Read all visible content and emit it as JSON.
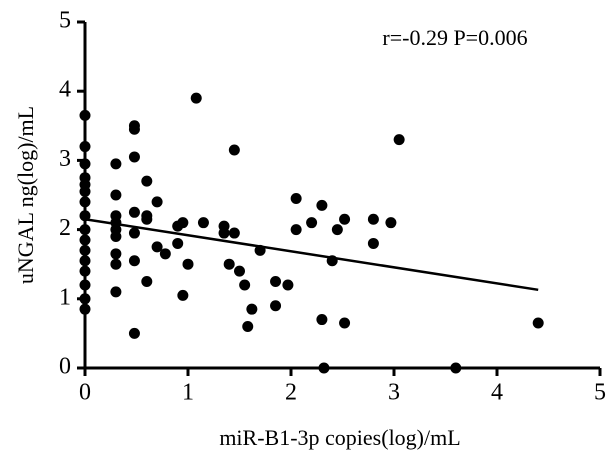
{
  "chart_data": {
    "type": "scatter",
    "annotation": "r=-0.29 P=0.006",
    "xlabel": "miR-B1-3p copies(log)/mL",
    "ylabel": "uNGAL ng(log)/mL",
    "color": "#000000",
    "x": [
      0,
      0,
      0,
      0,
      0,
      0,
      0,
      0,
      0,
      0,
      0,
      0,
      0,
      0,
      0,
      0,
      0.3,
      0.3,
      0.3,
      0.3,
      0.3,
      0.3,
      0.3,
      0.3,
      0.3,
      0.48,
      0.48,
      0.48,
      0.48,
      0.48,
      0.48,
      0.48,
      0.6,
      0.6,
      0.6,
      0.6,
      0.7,
      0.7,
      0.78,
      0.9,
      0.9,
      0.95,
      0.95,
      1.0,
      1.08,
      1.15,
      1.35,
      1.35,
      1.4,
      1.45,
      1.45,
      1.5,
      1.55,
      1.58,
      1.62,
      1.7,
      1.85,
      1.85,
      1.97,
      2.05,
      2.05,
      2.2,
      2.3,
      2.3,
      2.32,
      2.4,
      2.45,
      2.52,
      2.52,
      2.8,
      2.8,
      2.97,
      3.05,
      3.6,
      4.4
    ],
    "y": [
      3.65,
      3.2,
      2.95,
      2.75,
      2.65,
      2.55,
      2.4,
      2.2,
      2.0,
      1.85,
      1.7,
      1.55,
      1.4,
      1.2,
      1.0,
      0.85,
      2.95,
      2.5,
      2.2,
      2.1,
      2.0,
      1.9,
      1.65,
      1.5,
      1.1,
      3.5,
      3.45,
      3.05,
      2.25,
      1.95,
      1.55,
      0.5,
      2.7,
      2.2,
      2.15,
      1.25,
      2.4,
      1.75,
      1.65,
      2.05,
      1.8,
      2.1,
      1.05,
      1.5,
      3.9,
      2.1,
      2.05,
      1.95,
      1.5,
      3.15,
      1.95,
      1.4,
      1.2,
      0.6,
      0.85,
      1.7,
      1.25,
      0.9,
      1.2,
      2.45,
      2.0,
      2.1,
      2.35,
      0.7,
      0,
      1.55,
      2.0,
      2.15,
      0.65,
      2.15,
      1.8,
      2.1,
      3.3,
      0,
      0.65
    ],
    "fit_line": {
      "x": [
        0,
        4.4
      ],
      "y": [
        2.15,
        1.13
      ]
    },
    "xlim": [
      0,
      5
    ],
    "ylim": [
      0,
      5
    ],
    "xticks": [
      0,
      1,
      2,
      3,
      4,
      5
    ],
    "yticks": [
      0,
      1,
      2,
      3,
      4,
      5
    ]
  }
}
